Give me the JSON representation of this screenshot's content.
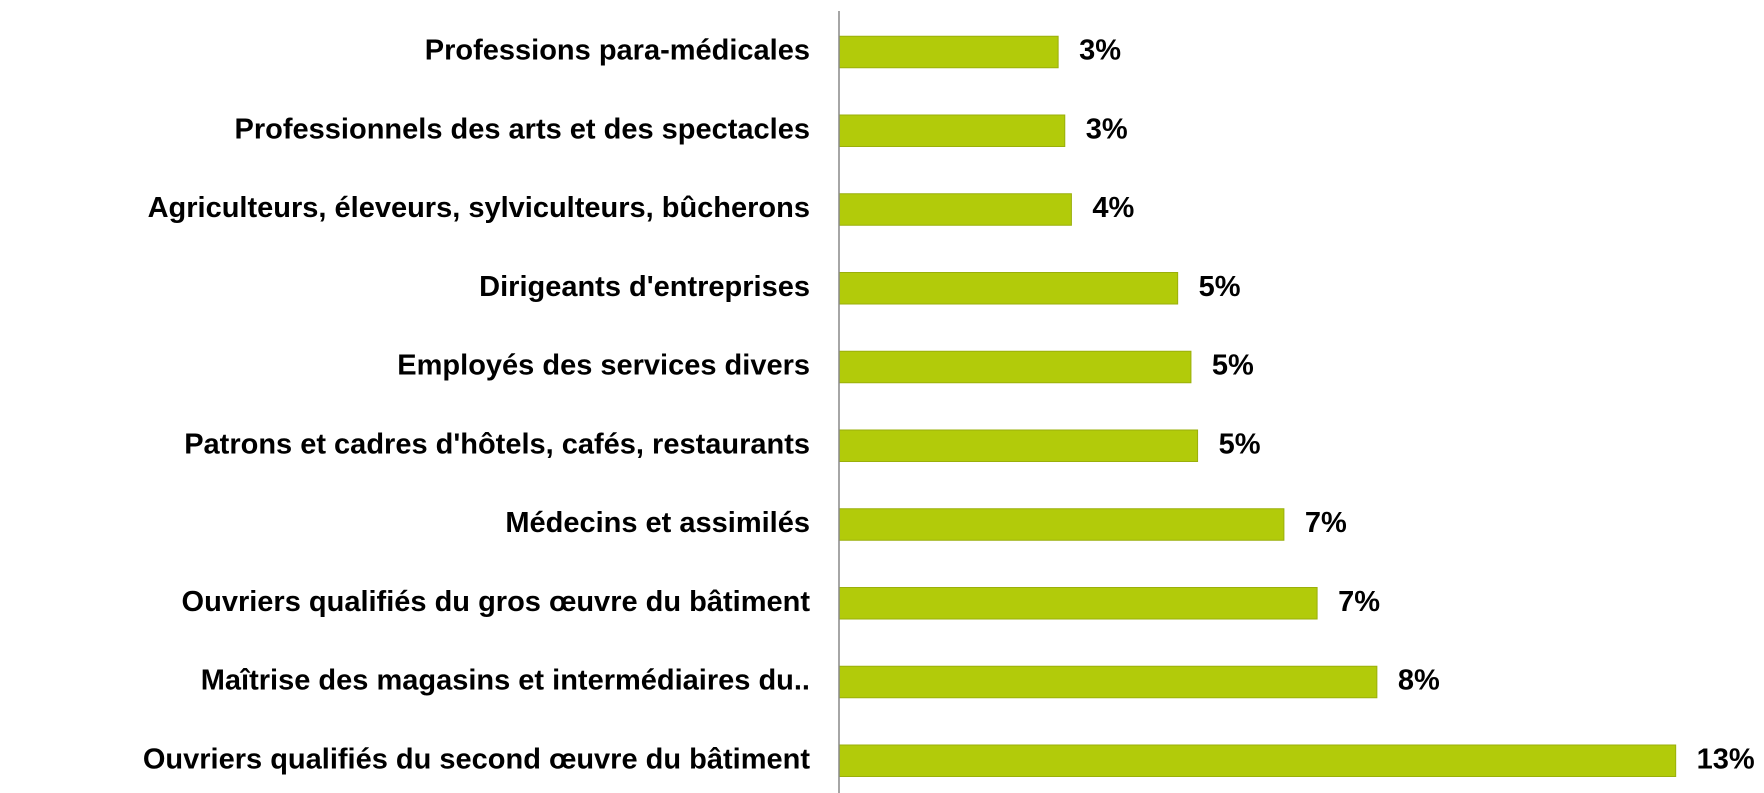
{
  "chart_data": {
    "type": "bar",
    "orientation": "horizontal",
    "categories": [
      "Professions para-médicales",
      "Professionnels des arts et des spectacles",
      "Agriculteurs, éleveurs, sylviculteurs, bûcherons",
      "Dirigeants d'entreprises",
      "Employés des services divers",
      "Patrons et cadres d'hôtels, cafés, restaurants",
      "Médecins et assimilés",
      "Ouvriers qualifiés du gros œuvre du bâtiment",
      "Maîtrise des magasins et intermédiaires du..",
      "Ouvriers qualifiés du second œuvre du bâtiment"
    ],
    "values": [
      3.3,
      3.4,
      3.5,
      5.1,
      5.3,
      5.4,
      6.7,
      7.2,
      8.1,
      12.6
    ],
    "value_labels": [
      "3%",
      "3%",
      "4%",
      "5%",
      "5%",
      "5%",
      "7%",
      "7%",
      "8%",
      "13%"
    ],
    "color": "#b2cb0a",
    "xlim": [
      0,
      13.9
    ]
  }
}
